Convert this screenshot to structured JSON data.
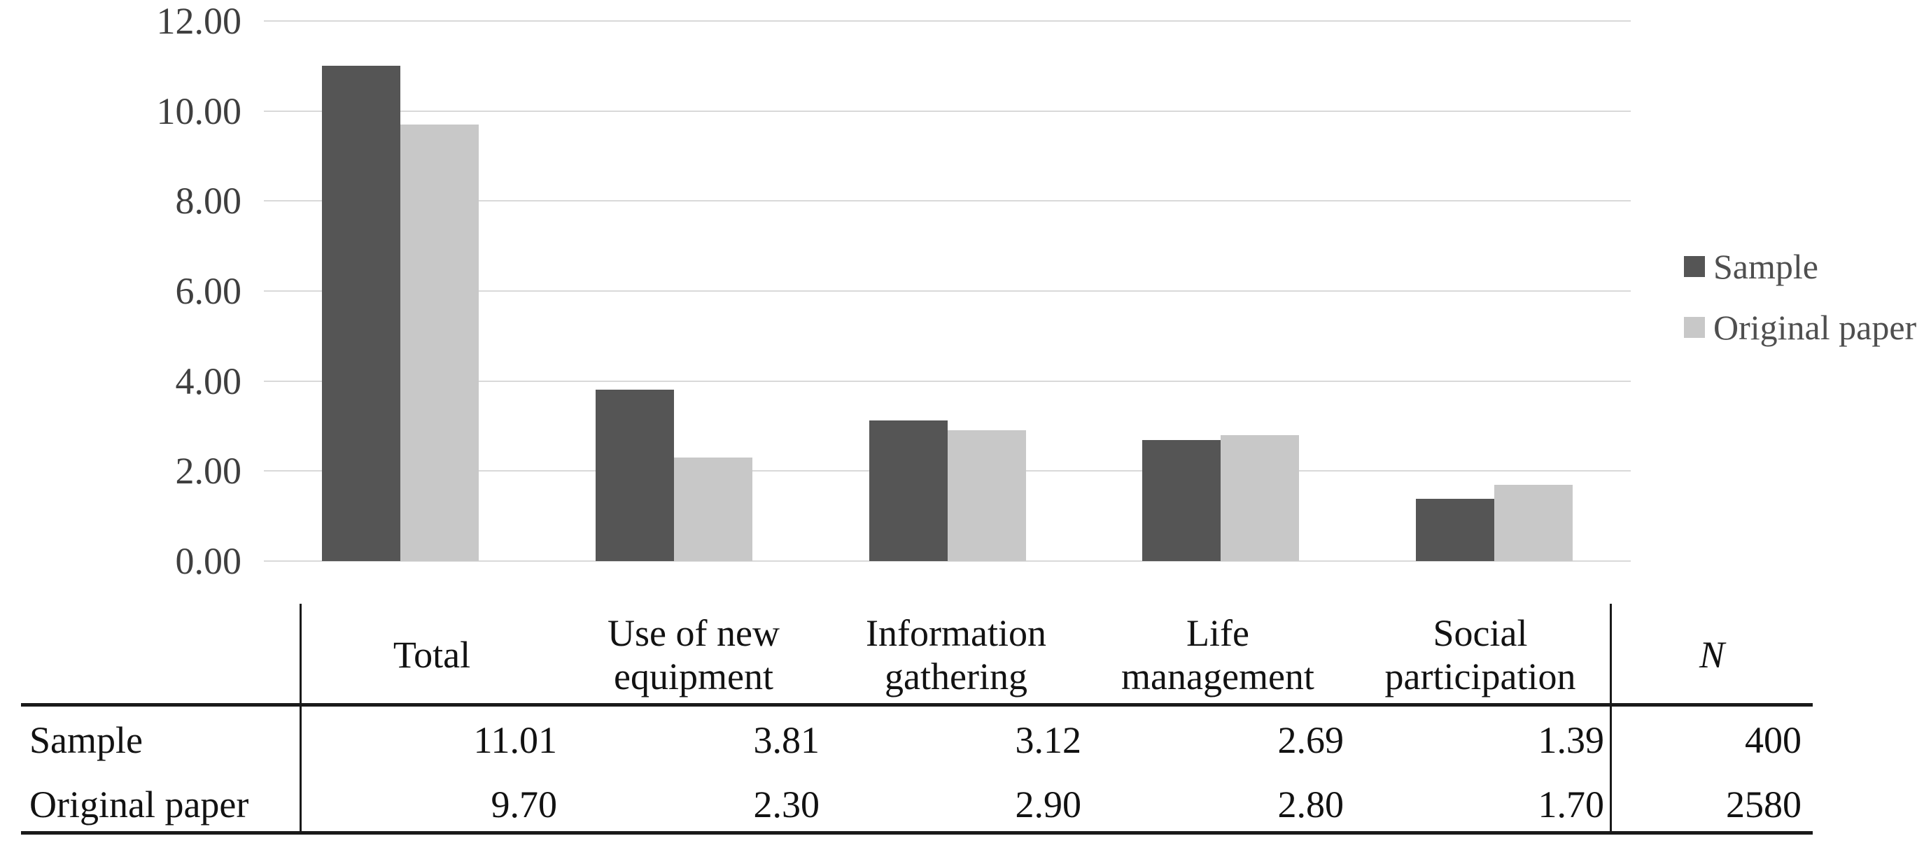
{
  "chart_data": {
    "type": "bar",
    "title": "",
    "xlabel": "",
    "ylabel": "",
    "categories": [
      "Total",
      "Use of new equipment",
      "Information gathering",
      "Life management",
      "Social participation"
    ],
    "series": [
      {
        "name": "Sample",
        "color": "#555555",
        "values": [
          11.01,
          3.81,
          3.12,
          2.69,
          1.39
        ]
      },
      {
        "name": "Original paper",
        "color": "#c8c8c8",
        "values": [
          9.7,
          2.3,
          2.9,
          2.8,
          1.7
        ]
      }
    ],
    "ylim": [
      0,
      12
    ],
    "ytick_step": 2,
    "ytick_labels": [
      "0.00",
      "2.00",
      "4.00",
      "6.00",
      "8.00",
      "10.00",
      "12.00"
    ],
    "grid": true,
    "legend_position": "right"
  },
  "colors": {
    "gridline": "#d9d9d9",
    "axis_text": "#3f3f3f",
    "legend_text": "#4f4f4f",
    "table_text": "#121212",
    "table_rule": "#1a1a1a",
    "background": "#ffffff"
  },
  "table": {
    "header": [
      "",
      "Total",
      "Use of new equipment",
      "Information gathering",
      "Life management",
      "Social participation",
      "N"
    ],
    "rows": [
      {
        "label": "Sample",
        "values": [
          "11.01",
          "3.81",
          "3.12",
          "2.69",
          "1.39",
          "400"
        ]
      },
      {
        "label": "Original paper",
        "values": [
          "9.70",
          "2.30",
          "2.90",
          "2.80",
          "1.70",
          "2580"
        ]
      }
    ]
  }
}
